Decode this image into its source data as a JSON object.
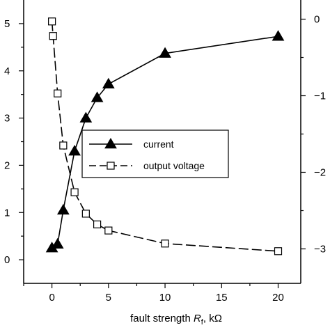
{
  "chart_data": {
    "type": "line",
    "xlabel": {
      "prefix": "fault strength ",
      "symbol": "R",
      "subscript": "f",
      "suffix": ", kΩ"
    },
    "ylabel": "",
    "y2label": "",
    "xlim": [
      -2.5,
      22
    ],
    "ylim": [
      -0.5,
      5.5
    ],
    "y2lim": [
      -3.45,
      0.25
    ],
    "x_ticks": [
      0,
      5,
      10,
      15,
      20
    ],
    "y_ticks": [
      0,
      1,
      2,
      3,
      4,
      5
    ],
    "y2_ticks": [
      0,
      -1,
      -2,
      -3
    ],
    "grid": false,
    "legend_position": "center-right",
    "series": [
      {
        "name": "current",
        "axis": "left",
        "marker": "filled-triangle",
        "line": "solid",
        "x": [
          0,
          0.5,
          1,
          2,
          3,
          4,
          5,
          10,
          20
        ],
        "y": [
          0.25,
          0.33,
          1.05,
          2.3,
          3.0,
          3.43,
          3.72,
          4.37,
          4.73
        ]
      },
      {
        "name": "output voltage",
        "axis": "right",
        "marker": "open-square",
        "line": "dashed",
        "x": [
          0,
          0.1,
          0.5,
          1,
          2,
          3,
          4,
          5,
          10,
          20
        ],
        "y": [
          -0.03,
          -0.22,
          -0.97,
          -1.65,
          -2.26,
          -2.54,
          -2.68,
          -2.76,
          -2.93,
          -3.03
        ]
      }
    ]
  }
}
